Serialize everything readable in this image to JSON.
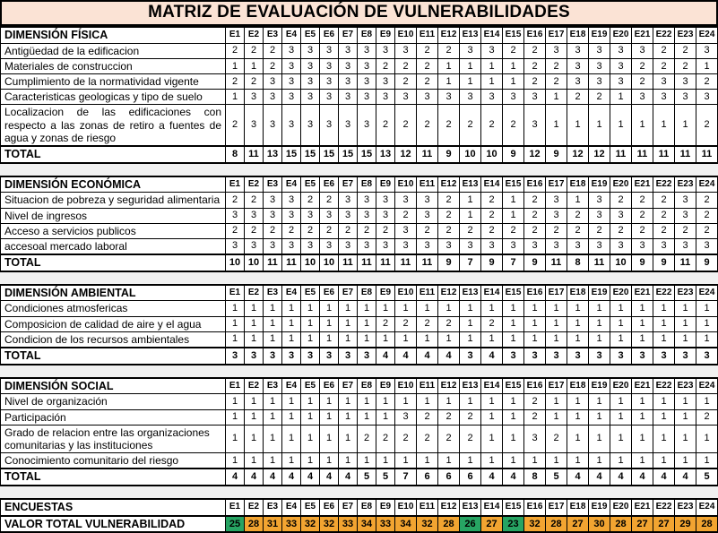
{
  "title": "MATRIZ DE EVALUACIÓN DE VULNERABILIDADES",
  "columns": [
    "E1",
    "E2",
    "E3",
    "E4",
    "E5",
    "E6",
    "E7",
    "E8",
    "E9",
    "E10",
    "E11",
    "E12",
    "E13",
    "E14",
    "E15",
    "E16",
    "E17",
    "E18",
    "E19",
    "E20",
    "E21",
    "E22",
    "E23",
    "E24"
  ],
  "colors": {
    "title_bg": "#FBE3D5",
    "green": "#27A463",
    "orange": "#F2A431",
    "gap_bg": "#F1F1F1"
  },
  "sections": [
    {
      "name": "DIMENSIÓN FÍSICA",
      "rows": [
        {
          "label": "Antigüedad de la edificacion",
          "values": [
            2,
            2,
            2,
            3,
            3,
            3,
            3,
            3,
            3,
            3,
            2,
            2,
            3,
            3,
            2,
            2,
            3,
            3,
            3,
            3,
            3,
            2,
            2,
            3
          ]
        },
        {
          "label": "Materiales de construccion",
          "values": [
            1,
            1,
            2,
            3,
            3,
            3,
            3,
            3,
            2,
            2,
            2,
            1,
            1,
            1,
            1,
            2,
            2,
            3,
            3,
            3,
            2,
            2,
            2,
            1
          ]
        },
        {
          "label": "Cumplimiento de la normatividad vigente",
          "values": [
            2,
            2,
            3,
            3,
            3,
            3,
            3,
            3,
            3,
            2,
            2,
            1,
            1,
            1,
            1,
            2,
            2,
            3,
            3,
            3,
            2,
            3,
            3,
            2
          ]
        },
        {
          "label": "Caracteristicas geologicas y tipo de suelo",
          "values": [
            1,
            3,
            3,
            3,
            3,
            3,
            3,
            3,
            3,
            3,
            3,
            3,
            3,
            3,
            3,
            3,
            1,
            2,
            2,
            1,
            3,
            3,
            3,
            3
          ]
        },
        {
          "label": "Localizacion de las edificaciones con respecto a las zonas de retiro a fuentes de agua y zonas de riesgo",
          "justify": true,
          "values": [
            2,
            3,
            3,
            3,
            3,
            3,
            3,
            3,
            2,
            2,
            2,
            2,
            2,
            2,
            2,
            3,
            1,
            1,
            1,
            1,
            1,
            1,
            1,
            2
          ]
        }
      ],
      "total_label": "TOTAL",
      "totals": [
        8,
        11,
        13,
        15,
        15,
        15,
        15,
        15,
        13,
        12,
        11,
        9,
        10,
        10,
        9,
        12,
        9,
        12,
        12,
        11,
        11,
        11,
        11,
        11
      ]
    },
    {
      "name": "DIMENSIÓN ECONÓMICA",
      "rows": [
        {
          "label": "Situacion de pobreza y seguridad alimentaria",
          "values": [
            2,
            2,
            3,
            3,
            2,
            2,
            3,
            3,
            3,
            3,
            3,
            2,
            1,
            2,
            1,
            2,
            3,
            1,
            3,
            2,
            2,
            2,
            3,
            2
          ]
        },
        {
          "label": "Nivel de ingresos",
          "values": [
            3,
            3,
            3,
            3,
            3,
            3,
            3,
            3,
            3,
            2,
            3,
            2,
            1,
            2,
            1,
            2,
            3,
            2,
            3,
            3,
            2,
            2,
            3,
            2
          ]
        },
        {
          "label": "Acceso a servicios publicos",
          "values": [
            2,
            2,
            2,
            2,
            2,
            2,
            2,
            2,
            2,
            3,
            2,
            2,
            2,
            2,
            2,
            2,
            2,
            2,
            2,
            2,
            2,
            2,
            2,
            2
          ]
        },
        {
          "label": "accesoal mercado laboral",
          "values": [
            3,
            3,
            3,
            3,
            3,
            3,
            3,
            3,
            3,
            3,
            3,
            3,
            3,
            3,
            3,
            3,
            3,
            3,
            3,
            3,
            3,
            3,
            3,
            3
          ]
        }
      ],
      "total_label": "TOTAL",
      "totals": [
        10,
        10,
        11,
        11,
        10,
        10,
        11,
        11,
        11,
        11,
        11,
        9,
        7,
        9,
        7,
        9,
        11,
        8,
        11,
        10,
        9,
        9,
        11,
        9
      ]
    },
    {
      "name": "DIMENSIÓN AMBIENTAL",
      "rows": [
        {
          "label": "Condiciones atmosfericas",
          "values": [
            1,
            1,
            1,
            1,
            1,
            1,
            1,
            1,
            1,
            1,
            1,
            1,
            1,
            1,
            1,
            1,
            1,
            1,
            1,
            1,
            1,
            1,
            1,
            1
          ]
        },
        {
          "label": "Composicion de calidad de aire y el agua",
          "values": [
            1,
            1,
            1,
            1,
            1,
            1,
            1,
            1,
            2,
            2,
            2,
            2,
            1,
            2,
            1,
            1,
            1,
            1,
            1,
            1,
            1,
            1,
            1,
            1
          ]
        },
        {
          "label": "Condicion de los recursos ambientales",
          "values": [
            1,
            1,
            1,
            1,
            1,
            1,
            1,
            1,
            1,
            1,
            1,
            1,
            1,
            1,
            1,
            1,
            1,
            1,
            1,
            1,
            1,
            1,
            1,
            1
          ]
        }
      ],
      "total_label": "TOTAL",
      "totals": [
        3,
        3,
        3,
        3,
        3,
        3,
        3,
        3,
        4,
        4,
        4,
        4,
        3,
        4,
        3,
        3,
        3,
        3,
        3,
        3,
        3,
        3,
        3,
        3
      ]
    },
    {
      "name": "DIMENSIÓN SOCIAL",
      "rows": [
        {
          "label": "Nivel de organización",
          "values": [
            1,
            1,
            1,
            1,
            1,
            1,
            1,
            1,
            1,
            1,
            1,
            1,
            1,
            1,
            1,
            2,
            1,
            1,
            1,
            1,
            1,
            1,
            1,
            1
          ]
        },
        {
          "label": "Participación",
          "values": [
            1,
            1,
            1,
            1,
            1,
            1,
            1,
            1,
            1,
            3,
            2,
            2,
            2,
            1,
            1,
            2,
            1,
            1,
            1,
            1,
            1,
            1,
            1,
            2
          ]
        },
        {
          "label": "Grado de relacion entre las organizaciones comunitarias y las instituciones",
          "values": [
            1,
            1,
            1,
            1,
            1,
            1,
            1,
            2,
            2,
            2,
            2,
            2,
            2,
            1,
            1,
            3,
            2,
            1,
            1,
            1,
            1,
            1,
            1,
            1
          ]
        },
        {
          "label": "Conocimiento comunitario del riesgo",
          "values": [
            1,
            1,
            1,
            1,
            1,
            1,
            1,
            1,
            1,
            1,
            1,
            1,
            1,
            1,
            1,
            1,
            1,
            1,
            1,
            1,
            1,
            1,
            1,
            1
          ]
        }
      ],
      "total_label": "TOTAL",
      "totals": [
        4,
        4,
        4,
        4,
        4,
        4,
        4,
        5,
        5,
        7,
        6,
        6,
        6,
        4,
        4,
        8,
        5,
        4,
        4,
        4,
        4,
        4,
        4,
        5
      ]
    }
  ],
  "footer": {
    "header_label": "ENCUESTAS",
    "row_label": "VALOR TOTAL VULNERABILIDAD",
    "values": [
      25,
      28,
      31,
      33,
      32,
      32,
      33,
      34,
      33,
      34,
      32,
      28,
      26,
      27,
      23,
      32,
      28,
      27,
      30,
      28,
      27,
      27,
      29,
      28
    ],
    "green_columns": [
      "E1",
      "E13",
      "E15"
    ]
  }
}
